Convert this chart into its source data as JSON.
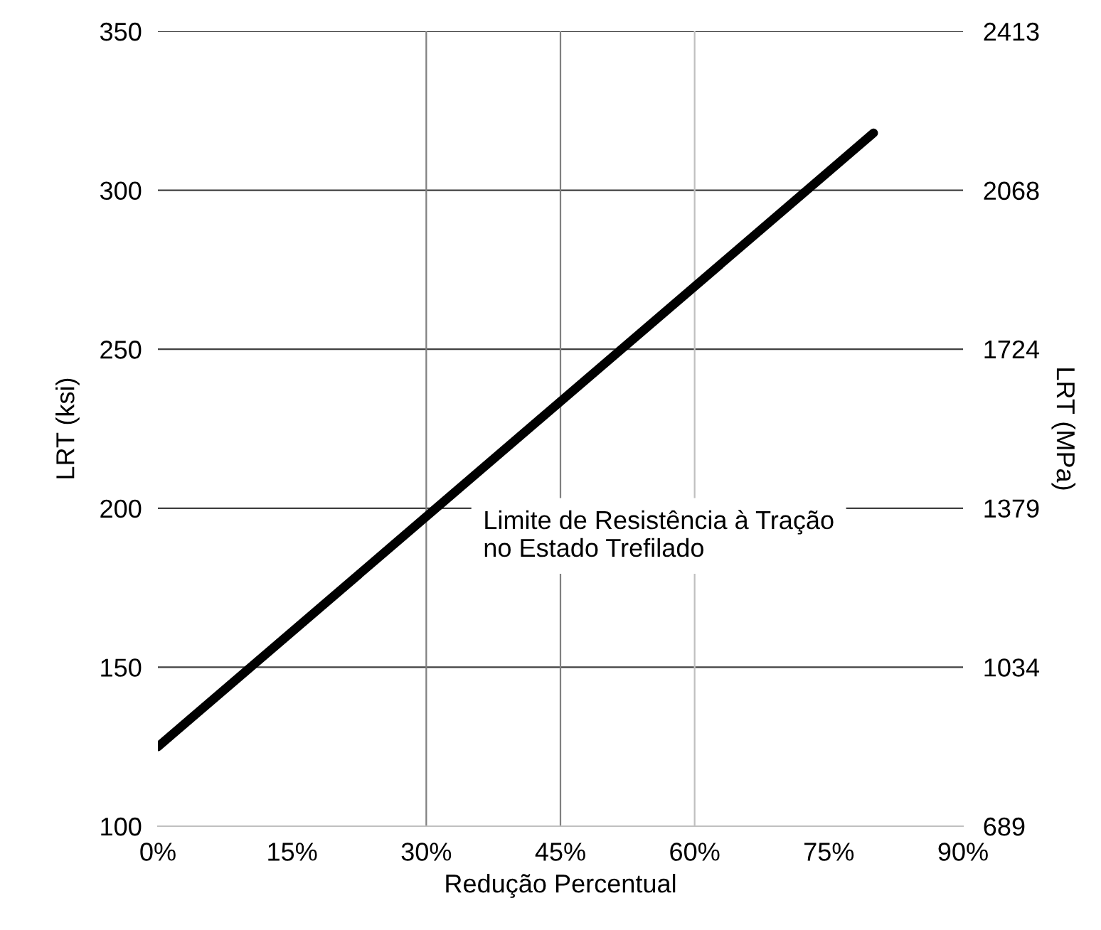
{
  "chart_data": {
    "type": "line",
    "xlabel": "Redução Percentual",
    "ylabel": "LRT (ksi)",
    "y2label": "LRT (MPa)",
    "x": [
      0,
      80
    ],
    "series": [
      {
        "color": "#000000",
        "values": [
          125,
          318
        ]
      }
    ],
    "xlim": [
      0,
      90
    ],
    "xticks": [
      {
        "value": 0,
        "label": "0%"
      },
      {
        "value": 15,
        "label": "15%"
      },
      {
        "value": 30,
        "label": "30%"
      },
      {
        "value": 45,
        "label": "45%"
      },
      {
        "value": 60,
        "label": "60%"
      },
      {
        "value": 75,
        "label": "75%"
      },
      {
        "value": 90,
        "label": "90%"
      }
    ],
    "ylim": [
      100,
      350
    ],
    "yticks": [
      100,
      150,
      200,
      250,
      300,
      350
    ],
    "y2lim": [
      689,
      2413
    ],
    "y2ticks": [
      689,
      1034,
      1379,
      1724,
      2068,
      2413
    ],
    "ref_lines": [
      {
        "axis": "x",
        "value": 30,
        "color": "#808080"
      },
      {
        "axis": "x",
        "value": 45,
        "color": "#808080"
      },
      {
        "axis": "x",
        "value": 60,
        "color": "#c0c0c0"
      }
    ],
    "annotations": [
      "Limite de Resistência à Tração\nno Estado Trefilado"
    ],
    "grid": "y",
    "line_style": "solid",
    "marker": "none"
  }
}
